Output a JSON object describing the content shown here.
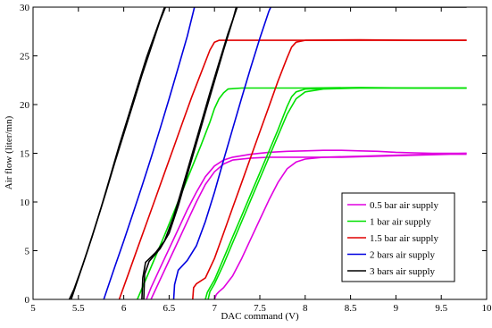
{
  "chart_data": {
    "type": "line",
    "title": "",
    "xlabel": "DAC command (V)",
    "ylabel": "Air flow (liter/mn)",
    "xlim": [
      5,
      10
    ],
    "ylim": [
      0,
      30
    ],
    "xticks": [
      5,
      5.5,
      6,
      6.5,
      7,
      7.5,
      8,
      8.5,
      9,
      9.5,
      10
    ],
    "xtick_labels": [
      "5",
      "5.5",
      "6",
      "6.5",
      "7",
      "7.5",
      "8",
      "8.5",
      "9",
      "9.5",
      "10"
    ],
    "yticks": [
      0,
      5,
      10,
      15,
      20,
      25,
      30
    ],
    "ytick_labels": [
      "0",
      "5",
      "10",
      "15",
      "20",
      "25",
      "30"
    ],
    "grid": false,
    "legend_position": "bottom-right",
    "series": [
      {
        "name": "0.5 bar air supply",
        "color": "#e000e0",
        "lines": [
          [
            [
              6.25,
              0
            ],
            [
              6.3,
              1.2
            ],
            [
              6.4,
              3.2
            ],
            [
              6.5,
              5.2
            ],
            [
              6.6,
              7.2
            ],
            [
              6.7,
              9.2
            ],
            [
              6.8,
              11.0
            ],
            [
              6.9,
              12.6
            ],
            [
              7.0,
              13.7
            ],
            [
              7.1,
              14.3
            ],
            [
              7.2,
              14.6
            ],
            [
              7.4,
              14.9
            ],
            [
              7.6,
              15.1
            ],
            [
              7.8,
              15.2
            ],
            [
              8.0,
              15.25
            ],
            [
              8.2,
              15.3
            ],
            [
              8.4,
              15.3
            ],
            [
              8.6,
              15.25
            ],
            [
              8.8,
              15.2
            ],
            [
              9.0,
              15.1
            ],
            [
              9.2,
              15.05
            ],
            [
              9.4,
              15.0
            ],
            [
              9.6,
              15.0
            ],
            [
              9.78,
              15.0
            ]
          ],
          [
            [
              6.3,
              0
            ],
            [
              6.4,
              2.0
            ],
            [
              6.5,
              4.0
            ],
            [
              6.6,
              6.0
            ],
            [
              6.7,
              8.0
            ],
            [
              6.8,
              10.0
            ],
            [
              6.9,
              11.8
            ],
            [
              7.0,
              13.1
            ],
            [
              7.1,
              13.9
            ],
            [
              7.2,
              14.3
            ],
            [
              7.4,
              14.5
            ],
            [
              7.6,
              14.6
            ],
            [
              8.0,
              14.6
            ],
            [
              8.4,
              14.6
            ],
            [
              8.8,
              14.7
            ],
            [
              9.2,
              14.8
            ],
            [
              9.6,
              14.9
            ],
            [
              9.78,
              14.9
            ]
          ],
          [
            [
              7.0,
              0
            ],
            [
              7.02,
              0.5
            ],
            [
              7.05,
              0.8
            ],
            [
              7.1,
              1.2
            ],
            [
              7.2,
              2.4
            ],
            [
              7.3,
              4.2
            ],
            [
              7.4,
              6.2
            ],
            [
              7.5,
              8.2
            ],
            [
              7.6,
              10.2
            ],
            [
              7.7,
              12.0
            ],
            [
              7.8,
              13.4
            ],
            [
              7.9,
              14.1
            ],
            [
              8.0,
              14.4
            ],
            [
              8.2,
              14.6
            ],
            [
              8.6,
              14.7
            ],
            [
              9.0,
              14.8
            ],
            [
              9.4,
              14.9
            ],
            [
              9.78,
              15.0
            ]
          ]
        ]
      },
      {
        "name": "1 bar air supply",
        "color": "#00e000",
        "lines": [
          [
            [
              6.15,
              0
            ],
            [
              6.25,
              2.2
            ],
            [
              6.35,
              4.4
            ],
            [
              6.45,
              6.6
            ],
            [
              6.55,
              8.9
            ],
            [
              6.65,
              11.2
            ],
            [
              6.75,
              13.5
            ],
            [
              6.85,
              15.8
            ],
            [
              6.95,
              18.2
            ],
            [
              7.0,
              19.6
            ],
            [
              7.05,
              20.6
            ],
            [
              7.1,
              21.2
            ],
            [
              7.15,
              21.6
            ],
            [
              7.3,
              21.7
            ],
            [
              7.6,
              21.7
            ],
            [
              8.0,
              21.7
            ],
            [
              8.6,
              21.75
            ],
            [
              9.2,
              21.7
            ],
            [
              9.78,
              21.7
            ]
          ],
          [
            [
              6.9,
              0
            ],
            [
              6.92,
              0.7
            ],
            [
              6.95,
              1.2
            ],
            [
              7.0,
              2.0
            ],
            [
              7.1,
              4.2
            ],
            [
              7.2,
              6.4
            ],
            [
              7.3,
              8.6
            ],
            [
              7.4,
              10.8
            ],
            [
              7.5,
              13.0
            ],
            [
              7.6,
              15.2
            ],
            [
              7.7,
              17.4
            ],
            [
              7.75,
              18.6
            ],
            [
              7.8,
              19.8
            ],
            [
              7.85,
              20.8
            ],
            [
              7.9,
              21.3
            ],
            [
              8.0,
              21.6
            ],
            [
              8.4,
              21.7
            ],
            [
              9.0,
              21.7
            ],
            [
              9.78,
              21.7
            ]
          ],
          [
            [
              6.93,
              0
            ],
            [
              6.95,
              0.8
            ],
            [
              7.0,
              1.6
            ],
            [
              7.1,
              3.6
            ],
            [
              7.2,
              5.8
            ],
            [
              7.3,
              8.0
            ],
            [
              7.4,
              10.2
            ],
            [
              7.5,
              12.4
            ],
            [
              7.6,
              14.6
            ],
            [
              7.7,
              16.8
            ],
            [
              7.8,
              19.0
            ],
            [
              7.9,
              20.6
            ],
            [
              8.0,
              21.3
            ],
            [
              8.2,
              21.6
            ],
            [
              8.6,
              21.7
            ],
            [
              9.2,
              21.7
            ],
            [
              9.78,
              21.7
            ]
          ]
        ]
      },
      {
        "name": "1.5 bar air supply",
        "color": "#e00000",
        "lines": [
          [
            [
              5.95,
              0
            ],
            [
              6.05,
              2.6
            ],
            [
              6.15,
              5.2
            ],
            [
              6.25,
              7.8
            ],
            [
              6.35,
              10.4
            ],
            [
              6.45,
              13.0
            ],
            [
              6.55,
              15.6
            ],
            [
              6.65,
              18.2
            ],
            [
              6.75,
              20.8
            ],
            [
              6.85,
              23.2
            ],
            [
              6.95,
              25.6
            ],
            [
              7.0,
              26.4
            ],
            [
              7.05,
              26.6
            ],
            [
              7.2,
              26.6
            ],
            [
              7.6,
              26.6
            ],
            [
              8.0,
              26.6
            ],
            [
              8.6,
              26.65
            ],
            [
              9.2,
              26.6
            ],
            [
              9.78,
              26.6
            ]
          ],
          [
            [
              6.76,
              0
            ],
            [
              6.77,
              1.2
            ],
            [
              6.8,
              1.6
            ],
            [
              6.9,
              2.2
            ],
            [
              7.0,
              4.2
            ],
            [
              7.1,
              6.8
            ],
            [
              7.2,
              9.4
            ],
            [
              7.3,
              12.0
            ],
            [
              7.4,
              14.6
            ],
            [
              7.5,
              17.2
            ],
            [
              7.6,
              19.8
            ],
            [
              7.7,
              22.4
            ],
            [
              7.8,
              24.8
            ],
            [
              7.85,
              25.9
            ],
            [
              7.9,
              26.4
            ],
            [
              8.0,
              26.6
            ],
            [
              8.4,
              26.6
            ],
            [
              9.0,
              26.6
            ],
            [
              9.78,
              26.6
            ]
          ]
        ]
      },
      {
        "name": "2 bars air supply",
        "color": "#0000e0",
        "lines": [
          [
            [
              5.78,
              0
            ],
            [
              5.9,
              3.3
            ],
            [
              6.0,
              6.0
            ],
            [
              6.1,
              8.8
            ],
            [
              6.2,
              11.6
            ],
            [
              6.3,
              14.5
            ],
            [
              6.4,
              17.5
            ],
            [
              6.5,
              20.6
            ],
            [
              6.6,
              23.8
            ],
            [
              6.7,
              27.0
            ],
            [
              6.78,
              30
            ]
          ],
          [
            [
              6.55,
              0
            ],
            [
              6.56,
              1.5
            ],
            [
              6.6,
              3.0
            ],
            [
              6.7,
              4.0
            ],
            [
              6.8,
              5.5
            ],
            [
              6.9,
              8.0
            ],
            [
              7.0,
              11.0
            ],
            [
              7.1,
              14.3
            ],
            [
              7.2,
              17.5
            ],
            [
              7.3,
              20.7
            ],
            [
              7.4,
              23.8
            ],
            [
              7.5,
              26.8
            ],
            [
              7.6,
              29.6
            ],
            [
              7.62,
              30
            ]
          ]
        ]
      },
      {
        "name": "3 bars air supply",
        "color": "#000000",
        "lines": [
          [
            [
              5.4,
              0
            ],
            [
              5.45,
              1.0
            ],
            [
              5.55,
              3.6
            ],
            [
              5.65,
              6.4
            ],
            [
              5.75,
              9.4
            ],
            [
              5.85,
              12.6
            ],
            [
              5.95,
              15.8
            ],
            [
              6.05,
              18.8
            ],
            [
              6.15,
              21.8
            ],
            [
              6.25,
              24.8
            ],
            [
              6.35,
              27.4
            ],
            [
              6.45,
              30
            ],
            [
              7.85,
              30
            ],
            [
              9.78,
              30
            ]
          ],
          [
            [
              5.42,
              0
            ],
            [
              5.5,
              2.2
            ],
            [
              5.6,
              5.0
            ],
            [
              5.7,
              7.9
            ],
            [
              5.8,
              10.9
            ],
            [
              5.9,
              14.0
            ],
            [
              6.0,
              17.0
            ],
            [
              6.1,
              20.0
            ],
            [
              6.2,
              23.0
            ],
            [
              6.3,
              25.8
            ],
            [
              6.4,
              28.6
            ],
            [
              6.46,
              30
            ]
          ],
          [
            [
              6.2,
              0
            ],
            [
              6.21,
              2.2
            ],
            [
              6.24,
              3.8
            ],
            [
              6.35,
              4.8
            ],
            [
              6.45,
              6.0
            ],
            [
              6.55,
              8.5
            ],
            [
              6.65,
              11.6
            ],
            [
              6.75,
              14.8
            ],
            [
              6.85,
              18.0
            ],
            [
              6.95,
              21.2
            ],
            [
              7.05,
              24.3
            ],
            [
              7.15,
              27.3
            ],
            [
              7.22,
              29.2
            ],
            [
              7.25,
              30
            ]
          ],
          [
            [
              6.22,
              0
            ],
            [
              6.23,
              2.6
            ],
            [
              6.28,
              3.9
            ],
            [
              6.4,
              5.2
            ],
            [
              6.5,
              6.8
            ],
            [
              6.6,
              9.6
            ],
            [
              6.7,
              12.8
            ],
            [
              6.8,
              16.0
            ],
            [
              6.9,
              19.2
            ],
            [
              7.0,
              22.4
            ],
            [
              7.1,
              25.6
            ],
            [
              7.2,
              28.6
            ],
            [
              7.24,
              30
            ]
          ]
        ]
      }
    ]
  }
}
